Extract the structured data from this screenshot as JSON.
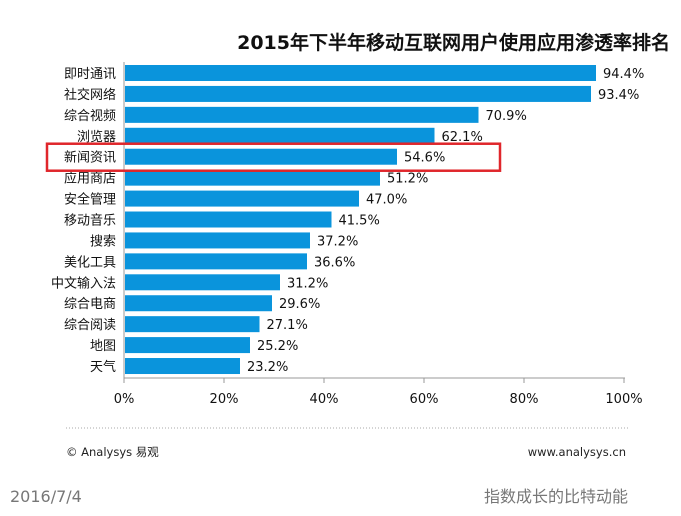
{
  "chart_data": {
    "type": "bar",
    "orientation": "horizontal",
    "title": "2015年下半年移动互联网用户使用应用渗透率排名",
    "categories": [
      "即时通讯",
      "社交网络",
      "综合视频",
      "浏览器",
      "新闻资讯",
      "应用商店",
      "安全管理",
      "移动音乐",
      "搜索",
      "美化工具",
      "中文输入法",
      "综合电商",
      "综合阅读",
      "地图",
      "天气"
    ],
    "values": [
      94.4,
      93.4,
      70.9,
      62.1,
      54.6,
      51.2,
      47.0,
      41.5,
      37.2,
      36.6,
      31.2,
      29.6,
      27.1,
      25.2,
      23.2
    ],
    "value_labels": [
      "94.4%",
      "93.4%",
      "70.9%",
      "62.1%",
      "54.6%",
      "51.2%",
      "47.0%",
      "41.5%",
      "37.2%",
      "36.6%",
      "31.2%",
      "29.6%",
      "27.1%",
      "25.2%",
      "23.2%"
    ],
    "xlim": [
      0,
      100
    ],
    "xticks": [
      "0%",
      "20%",
      "40%",
      "60%",
      "80%",
      "100%"
    ],
    "xlabel": "",
    "ylabel": "",
    "grid": false,
    "highlighted_category": "新闻资讯",
    "bar_color": "#0a94dc",
    "highlight_color": "#e0262b"
  },
  "footer": {
    "source": "© Analysys 易观",
    "website": "www.analysys.cn"
  },
  "page": {
    "date": "2016/7/4",
    "slogan": "指数成长的比特动能"
  }
}
